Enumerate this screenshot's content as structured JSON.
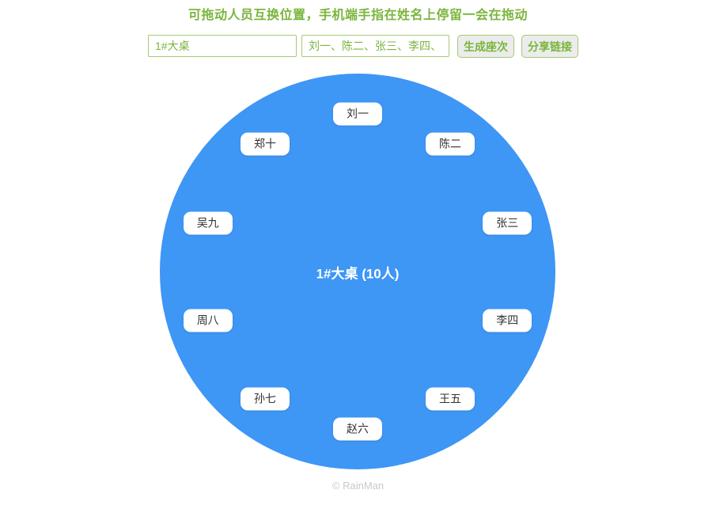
{
  "header": {
    "title": "可拖动人员互换位置，手机端手指在姓名上停留一会在拖动"
  },
  "toolbar": {
    "table_name_input": {
      "value": "1#大桌"
    },
    "names_input": {
      "value": "刘一、陈二、张三、李四、王五"
    },
    "generate_button_label": "生成座次",
    "share_button_label": "分享链接"
  },
  "table": {
    "center_label": "1#大桌 (10人)",
    "seat_count_shown": "10人",
    "seats": [
      "刘一",
      "陈二",
      "张三",
      "李四",
      "王五",
      "赵六",
      "孙七",
      "周八",
      "吴九",
      "郑十"
    ]
  },
  "footer": {
    "copyright": "© RainMan"
  },
  "colors": {
    "accent_green": "#7ab53c",
    "border_green": "#a4ca74",
    "button_bg": "#ececec",
    "circle_blue": "#3e96f5",
    "tag_text": "#333333",
    "footer_gray": "#c9c9c9"
  }
}
